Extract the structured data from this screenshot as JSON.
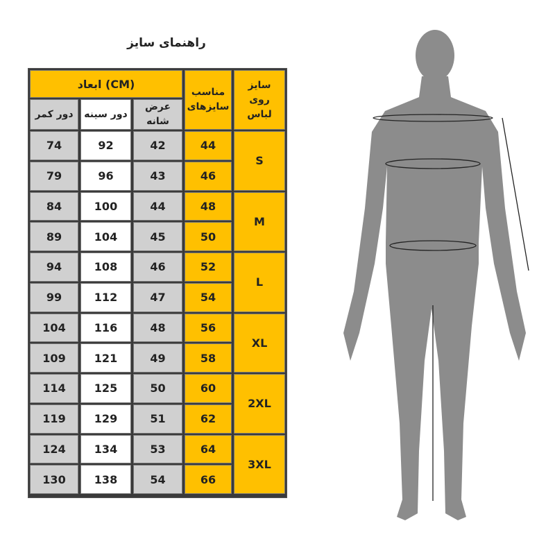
{
  "title": "راهنمای سایز",
  "headers": {
    "dimensions": "ابعاد (CM)",
    "waist": "دور کمر",
    "chest": "دور سینه",
    "shoulder": "عرض شانه",
    "fit": "مناسب سایزهای",
    "label_size": "سایز روی لباس"
  },
  "groups": [
    "S",
    "M",
    "L",
    "XL",
    "2XL",
    "3XL"
  ],
  "rows": [
    {
      "waist": "74",
      "chest": "92",
      "shoulder": "42",
      "fit": "44"
    },
    {
      "waist": "79",
      "chest": "96",
      "shoulder": "43",
      "fit": "46"
    },
    {
      "waist": "84",
      "chest": "100",
      "shoulder": "44",
      "fit": "48"
    },
    {
      "waist": "89",
      "chest": "104",
      "shoulder": "45",
      "fit": "50"
    },
    {
      "waist": "94",
      "chest": "108",
      "shoulder": "46",
      "fit": "52"
    },
    {
      "waist": "99",
      "chest": "112",
      "shoulder": "47",
      "fit": "54"
    },
    {
      "waist": "104",
      "chest": "116",
      "shoulder": "48",
      "fit": "56"
    },
    {
      "waist": "109",
      "chest": "121",
      "shoulder": "49",
      "fit": "58"
    },
    {
      "waist": "114",
      "chest": "125",
      "shoulder": "50",
      "fit": "60"
    },
    {
      "waist": "119",
      "chest": "129",
      "shoulder": "51",
      "fit": "62"
    },
    {
      "waist": "124",
      "chest": "134",
      "shoulder": "53",
      "fit": "64"
    },
    {
      "waist": "130",
      "chest": "138",
      "shoulder": "54",
      "fit": "66"
    }
  ],
  "colors": {
    "header": "#ffc000",
    "gray": "#d0d0d0",
    "figure": "#8c8c8c"
  }
}
